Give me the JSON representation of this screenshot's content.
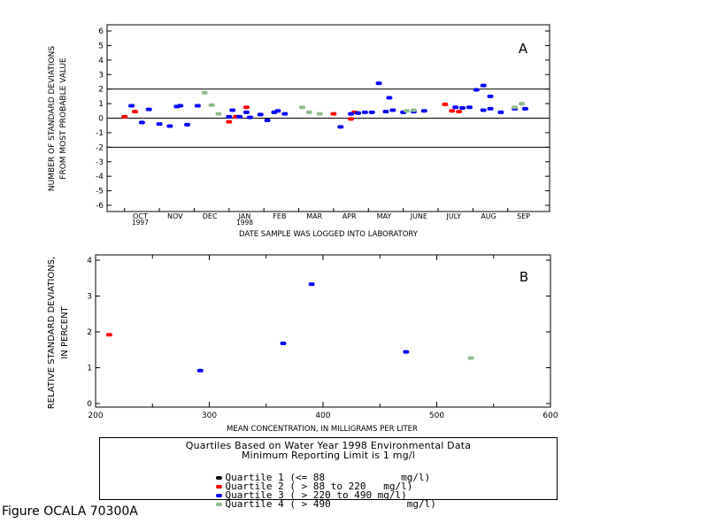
{
  "figure_label": "Figure OCALA 70300A",
  "colors": {
    "q1": "#000000",
    "q2": "#ff0000",
    "q3": "#0000ff",
    "q4": "#8fbc8f"
  },
  "legend": {
    "title_line1": "Quartiles Based on Water Year 1998 Environmental Data",
    "title_line2": "Minimum Reporting Limit is 1 mg/l",
    "items": [
      {
        "label": "Quartile 1 (<= 88             mg/l)",
        "quartile": "q1"
      },
      {
        "label": "Quartile 2 ( > 88 to 220   mg/l)",
        "quartile": "q2"
      },
      {
        "label": "Quartile 3 ( > 220 to 490 mg/l)",
        "quartile": "q3"
      },
      {
        "label": "Quartile 4 ( > 490             mg/l)",
        "quartile": "q4"
      }
    ]
  },
  "chart_data": [
    {
      "type": "scatter",
      "panel_letter": "A",
      "xlabel": "DATE SAMPLE WAS LOGGED INTO LABORATORY",
      "ylabel_line1": "NUMBER OF STANDARD DEVIATIONS",
      "ylabel_line2": "FROM MOST PROBABLE VALUE",
      "ylim": [
        -6,
        6
      ],
      "yticks": [
        -6,
        -5,
        -4,
        -3,
        -2,
        -1,
        0,
        1,
        2,
        3,
        4,
        5,
        6
      ],
      "reference_lines": [
        2,
        0,
        -2
      ],
      "x_unit": "month index (0 = start of Oct 1997)",
      "xlim": [
        -0.5,
        12.2
      ],
      "month_ticks": [
        {
          "label": "OCT",
          "sublabel": "1997"
        },
        {
          "label": "NOV",
          "sublabel": ""
        },
        {
          "label": "DEC",
          "sublabel": ""
        },
        {
          "label": "JAN",
          "sublabel": "1998"
        },
        {
          "label": "FEB",
          "sublabel": ""
        },
        {
          "label": "MAR",
          "sublabel": ""
        },
        {
          "label": "APR",
          "sublabel": ""
        },
        {
          "label": "MAY",
          "sublabel": ""
        },
        {
          "label": "JUNE",
          "sublabel": ""
        },
        {
          "label": "JULY",
          "sublabel": ""
        },
        {
          "label": "AUG",
          "sublabel": ""
        },
        {
          "label": "SEP",
          "sublabel": ""
        }
      ],
      "series": [
        {
          "quartile": "q2",
          "points": [
            [
              0.0,
              0.1
            ],
            [
              0.3,
              0.45
            ],
            [
              3.0,
              -0.25
            ],
            [
              3.2,
              0.1
            ],
            [
              3.5,
              0.75
            ],
            [
              6.0,
              0.3
            ],
            [
              6.5,
              -0.05
            ],
            [
              6.6,
              0.4
            ],
            [
              9.2,
              0.95
            ],
            [
              9.4,
              0.5
            ],
            [
              9.6,
              0.45
            ]
          ]
        },
        {
          "quartile": "q3",
          "points": [
            [
              0.2,
              0.85
            ],
            [
              0.5,
              -0.3
            ],
            [
              0.7,
              0.6
            ],
            [
              1.0,
              -0.4
            ],
            [
              1.3,
              -0.55
            ],
            [
              1.5,
              0.8
            ],
            [
              1.6,
              0.85
            ],
            [
              1.8,
              -0.45
            ],
            [
              2.1,
              0.85
            ],
            [
              3.0,
              0.1
            ],
            [
              3.1,
              0.55
            ],
            [
              3.3,
              0.1
            ],
            [
              3.5,
              0.4
            ],
            [
              3.6,
              0.05
            ],
            [
              3.9,
              0.25
            ],
            [
              4.1,
              -0.15
            ],
            [
              4.3,
              0.4
            ],
            [
              4.4,
              0.5
            ],
            [
              4.6,
              0.3
            ],
            [
              6.2,
              -0.6
            ],
            [
              6.5,
              0.3
            ],
            [
              6.7,
              0.35
            ],
            [
              6.9,
              0.4
            ],
            [
              7.1,
              0.4
            ],
            [
              7.3,
              2.4
            ],
            [
              7.5,
              0.45
            ],
            [
              7.6,
              1.4
            ],
            [
              7.7,
              0.55
            ],
            [
              8.0,
              0.4
            ],
            [
              8.3,
              0.45
            ],
            [
              8.6,
              0.5
            ],
            [
              9.5,
              0.75
            ],
            [
              9.7,
              0.7
            ],
            [
              9.9,
              0.75
            ],
            [
              10.1,
              1.95
            ],
            [
              10.3,
              2.25
            ],
            [
              10.3,
              0.55
            ],
            [
              10.5,
              0.65
            ],
            [
              10.5,
              1.5
            ],
            [
              10.8,
              0.4
            ],
            [
              11.2,
              0.65
            ],
            [
              11.5,
              0.65
            ]
          ]
        },
        {
          "quartile": "q4",
          "points": [
            [
              2.3,
              1.75
            ],
            [
              2.5,
              0.9
            ],
            [
              2.7,
              0.3
            ],
            [
              5.1,
              0.75
            ],
            [
              5.3,
              0.4
            ],
            [
              5.6,
              0.3
            ],
            [
              8.1,
              0.5
            ],
            [
              8.3,
              0.55
            ],
            [
              11.2,
              0.75
            ],
            [
              11.4,
              1.0
            ]
          ]
        }
      ]
    },
    {
      "type": "scatter",
      "panel_letter": "B",
      "xlabel": "MEAN CONCENTRATION, IN MILLIGRAMS PER LITER",
      "ylabel_line1": "RELATIVE STANDARD DEVIATIONS,",
      "ylabel_line2": "IN PERCENT",
      "xlim": [
        200,
        600
      ],
      "ylim": [
        0,
        4.1
      ],
      "xticks": [
        200,
        300,
        400,
        500,
        600
      ],
      "yticks": [
        0,
        1,
        2,
        3,
        4
      ],
      "series": [
        {
          "quartile": "q2",
          "points": [
            [
              212,
              1.92
            ]
          ]
        },
        {
          "quartile": "q3",
          "points": [
            [
              292,
              0.92
            ],
            [
              365,
              1.68
            ],
            [
              390,
              3.33
            ],
            [
              473,
              1.44
            ]
          ]
        },
        {
          "quartile": "q4",
          "points": [
            [
              530,
              1.27
            ]
          ]
        }
      ]
    }
  ]
}
